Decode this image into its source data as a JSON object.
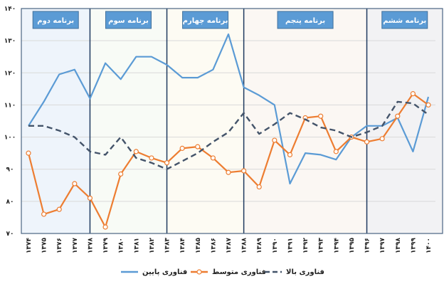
{
  "chart_data": {
    "type": "line",
    "title": "",
    "xlabel": "",
    "ylabel": "",
    "ylim": [
      70,
      140
    ],
    "yticks": [
      "۷۰",
      "۸۰",
      "۹۰",
      "۱۰۰",
      "۱۱۰",
      "۱۲۰",
      "۱۳۰",
      "۱۴۰"
    ],
    "ytick_values": [
      70,
      80,
      90,
      100,
      110,
      120,
      130,
      140
    ],
    "grid": true,
    "legend_position": "bottom",
    "categories": [
      "۱۳۷۴",
      "۱۳۷۵",
      "۱۳۷۶",
      "۱۳۷۷",
      "۱۳۷۸",
      "۱۳۷۹",
      "۱۳۸۰",
      "۱۳۸۱",
      "۱۳۸۲",
      "۱۳۸۳",
      "۱۳۸۴",
      "۱۳۸۵",
      "۱۳۸۶",
      "۱۳۸۷",
      "۱۳۸۸",
      "۱۳۸۹",
      "۱۳۹۰",
      "۱۳۹۱",
      "۱۳۹۲",
      "۱۳۹۳",
      "۱۳۹۴",
      "۱۳۹۵",
      "۱۳۹۶",
      "۱۳۹۷",
      "۱۳۹۸",
      "۱۳۹۹",
      "۱۴۰۰"
    ],
    "x": [
      1374,
      1375,
      1376,
      1377,
      1378,
      1379,
      1380,
      1381,
      1382,
      1383,
      1384,
      1385,
      1386,
      1387,
      1388,
      1389,
      1390,
      1391,
      1392,
      1393,
      1394,
      1395,
      1396,
      1397,
      1398,
      1399,
      1400
    ],
    "series": [
      {
        "name": "فناوری پایین",
        "style": "solid",
        "color": "#5b9bd5",
        "values": [
          103.5,
          111,
          119.5,
          121,
          112,
          123,
          118,
          125,
          125,
          122.5,
          118.5,
          118.5,
          121,
          132,
          115.5,
          113,
          110,
          85.5,
          95,
          94.5,
          93,
          100,
          103.5,
          103.5,
          106,
          95.5,
          112.5
        ]
      },
      {
        "name": "فناوری متوسط",
        "style": "solid-marker",
        "color": "#ed7d31",
        "values": [
          95,
          76,
          77.5,
          85.5,
          81,
          72,
          88.5,
          95.5,
          93.5,
          92,
          96.5,
          97,
          93.5,
          89,
          89.5,
          84.5,
          99,
          94.5,
          106,
          106.5,
          95.5,
          100,
          98.5,
          99.5,
          106.5,
          113.5,
          110
        ]
      },
      {
        "name": "فناوری بالا",
        "style": "dashed",
        "color": "#44546a",
        "values": [
          103.5,
          103.5,
          102,
          100,
          95.5,
          94.5,
          100,
          93.5,
          92,
          90,
          92.5,
          95,
          98.5,
          101.5,
          107.5,
          101,
          104,
          107.5,
          105.5,
          103,
          102,
          100,
          101.5,
          103.5,
          111,
          110.5,
          107
        ]
      }
    ],
    "annotations": [
      {
        "label": "برنامه دوم",
        "from": 1374,
        "to": 1378,
        "fill": "#eef4fb"
      },
      {
        "label": "برنامه سوم",
        "from": 1378,
        "to": 1383,
        "fill": "#f8fbf6"
      },
      {
        "label": "برنامه چهارم",
        "from": 1383,
        "to": 1388,
        "fill": "#fdfbf3"
      },
      {
        "label": "برنامه پنجم",
        "from": 1388,
        "to": 1396,
        "fill": "#fbf7f3"
      },
      {
        "label": "برنامه ششم",
        "from": 1396,
        "to": 1400,
        "fill": "#f2f2f4"
      }
    ]
  },
  "legend": {
    "items": [
      {
        "label": "فناوری پایین",
        "icon": "solid-line-icon"
      },
      {
        "label": "فناوری متوسط",
        "icon": "line-circle-marker-icon"
      },
      {
        "label": "فناوری بالا",
        "icon": "dashed-line-icon"
      }
    ]
  },
  "colors": {
    "label_box": "#5b9bd5",
    "label_box_border": "#41719c",
    "section_divider": "#1f3a5f",
    "gridline": "#d9d9d9",
    "frame": "#4a6482"
  }
}
